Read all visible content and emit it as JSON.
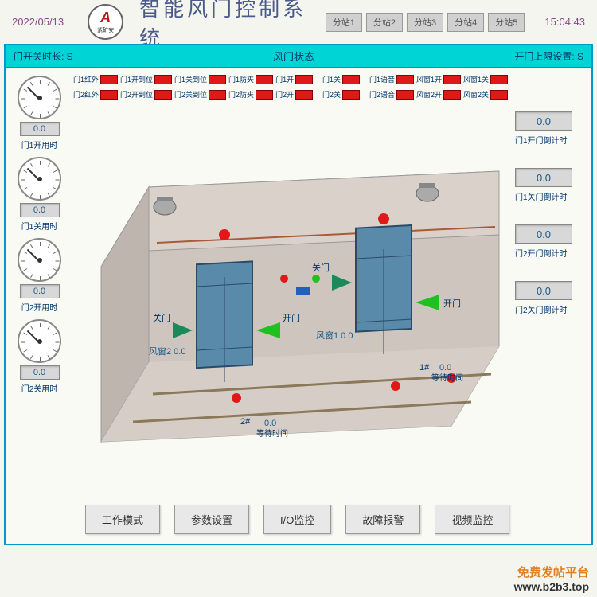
{
  "header": {
    "date": "2022/05/13",
    "title": "智能风门控制系统",
    "time": "15:04:43",
    "logo_letter": "A",
    "logo_sub": "紫矿安"
  },
  "stations": [
    {
      "label": "分站1"
    },
    {
      "label": "分站2"
    },
    {
      "label": "分站3"
    },
    {
      "label": "分站4"
    },
    {
      "label": "分站5"
    }
  ],
  "status_bar": {
    "left": "门开关时长: S",
    "center": "风门状态",
    "right": "开门上限设置: S"
  },
  "gauges": [
    {
      "value": "0.0",
      "label": "门1开用时"
    },
    {
      "value": "0.0",
      "label": "门1关用时"
    },
    {
      "value": "0.0",
      "label": "门2开用时"
    },
    {
      "value": "0.0",
      "label": "门2关用时"
    }
  ],
  "indicators_row1": [
    {
      "label": "门1红外"
    },
    {
      "label": "门1开到位"
    },
    {
      "label": "门1关到位"
    },
    {
      "label": "门1防夹"
    },
    {
      "label": "门1开"
    },
    {
      "label": "门1关"
    },
    {
      "label": "门1语音"
    },
    {
      "label": "风窗1开"
    },
    {
      "label": "风窗1关"
    }
  ],
  "indicators_row2": [
    {
      "label": "门2红外"
    },
    {
      "label": "门2开到位"
    },
    {
      "label": "门2关到位"
    },
    {
      "label": "门2防夹"
    },
    {
      "label": "门2开"
    },
    {
      "label": "门2关"
    },
    {
      "label": "门2语音"
    },
    {
      "label": "风窗2开"
    },
    {
      "label": "风窗2关"
    }
  ],
  "right_values": [
    {
      "value": "0.0",
      "label": "门1开门倒计时"
    },
    {
      "value": "0.0",
      "label": "门1关门倒计时"
    },
    {
      "value": "0.0",
      "label": "门2开门倒计时"
    },
    {
      "value": "0.0",
      "label": "门2关门倒计时"
    }
  ],
  "bottom_buttons": [
    {
      "label": "工作模式"
    },
    {
      "label": "参数设置"
    },
    {
      "label": "I/O监控"
    },
    {
      "label": "故障报警"
    },
    {
      "label": "视频监控"
    }
  ],
  "diagram": {
    "tunnel_fill": "#c8c0b8",
    "tunnel_stroke": "#888",
    "rail_color": "#8a7a5a",
    "door_fill": "#5a8aaa",
    "door_stroke": "#2a4a6a",
    "arrow_open": "#20c020",
    "arrow_close": "#1a8a5a",
    "labels": {
      "door1_open": "开门",
      "door1_close": "关门",
      "door2_open": "开门",
      "door2_close": "关门",
      "window1": "风窗1 0.0",
      "window2": "风窗2 0.0",
      "wait1": "0.0\n等待时间",
      "wait2": "0.0\n等待时间",
      "num1": "1#",
      "num2": "2#"
    },
    "camera_fill": "#999",
    "light_red": "#e01818",
    "light_blue": "#2060c0"
  },
  "watermark": {
    "text": "免费发帖平台",
    "url": "www.b2b3.top"
  },
  "colors": {
    "cyan": "#00d4d4",
    "border": "#0099cc",
    "text_blue": "#003366"
  }
}
